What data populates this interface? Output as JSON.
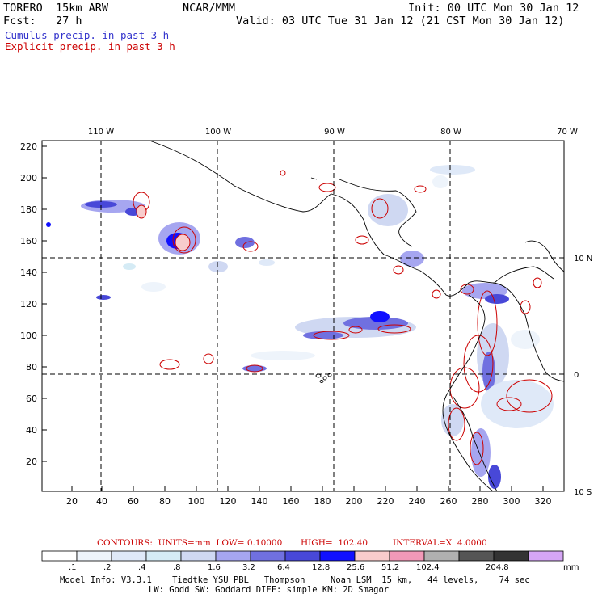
{
  "header": {
    "model": "TORERO  15km ARW",
    "org": "NCAR/MMM",
    "init": "Init: 00 UTC Mon 30 Jan 12",
    "fcst": "Fcst:   27 h",
    "valid": "Valid: 03 UTC Tue 31 Jan 12 (21 CST Mon 30 Jan 12)"
  },
  "titles": {
    "cumulus": "Cumulus precip. in past 3 h",
    "explicit": "Explicit precip. in past 3 h"
  },
  "colors": {
    "cumulus": "#3333cc",
    "explicit": "#cc0000"
  },
  "map": {
    "top_lon_labels": [
      "110 W",
      "100 W",
      "90 W",
      "80 W",
      "70 W"
    ],
    "right_lat_labels": [
      "10 N",
      "0",
      "10 S"
    ],
    "y_ticks": [
      "220",
      "200",
      "180",
      "160",
      "140",
      "120",
      "100",
      "80",
      "60",
      "40",
      "20"
    ],
    "x_ticks": [
      "20",
      "40",
      "60",
      "80",
      "100",
      "120",
      "140",
      "160",
      "180",
      "200",
      "220",
      "240",
      "260",
      "280",
      "300",
      "320"
    ]
  },
  "contours_line": {
    "label": "CONTOURS:  UNITS=mm  LOW= 0.10000",
    "high": "HIGH=  102.40",
    "interval": "INTERVAL=X  4.0000"
  },
  "colorbar": {
    "colors": [
      "#ffffff",
      "#eef4fb",
      "#dfe9f8",
      "#d5ebf5",
      "#cfd8f2",
      "#a6a6f0",
      "#7070e0",
      "#4848d8",
      "#1010ff",
      "#f8cccc",
      "#f299b8",
      "#b0b0b0",
      "#555555",
      "#333333",
      "#d5a6f5"
    ],
    "labels": [
      ".1",
      ".2",
      ".4",
      ".8",
      "1.6",
      "3.2",
      "6.4",
      "12.8",
      "25.6",
      "51.2",
      "102.4",
      "204.8"
    ],
    "units": "mm"
  },
  "footer": {
    "line1": "Model Info: V3.3.1    Tiedtke YSU PBL   Thompson     Noah LSM  15 km,   44 levels,    74 sec",
    "line2": "LW: Godd SW: Goddard DIFF: simple KM: 2D Smagor"
  }
}
